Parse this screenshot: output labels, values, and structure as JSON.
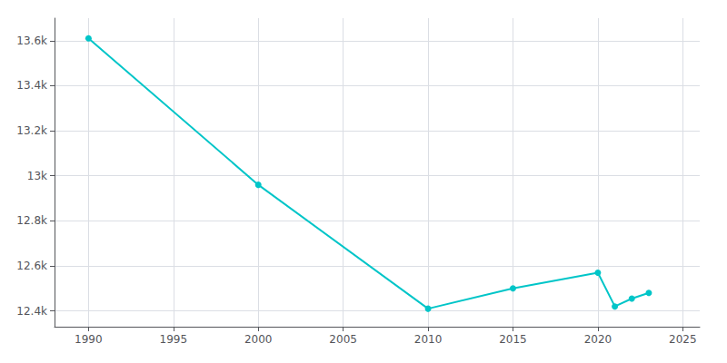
{
  "chart_data": {
    "type": "line",
    "x": [
      1990,
      2000,
      2010,
      2015,
      2020,
      2021,
      2022,
      2023
    ],
    "values": [
      13610,
      12960,
      12410,
      12500,
      12570,
      12420,
      12455,
      12480
    ],
    "color": "#00c5c8",
    "marker": "circle",
    "xlim": [
      1988,
      2026
    ],
    "xticks": [
      1990,
      1995,
      2000,
      2005,
      2010,
      2015,
      2020,
      2025
    ],
    "ylim": [
      12330,
      13700
    ],
    "yticks": [
      {
        "value": 12400,
        "label": "12.4k"
      },
      {
        "value": 12600,
        "label": "12.6k"
      },
      {
        "value": 12800,
        "label": "12.8k"
      },
      {
        "value": 13000,
        "label": "13k"
      },
      {
        "value": 13200,
        "label": "13.2k"
      },
      {
        "value": 13400,
        "label": "13.4k"
      },
      {
        "value": 13600,
        "label": "13.6k"
      }
    ],
    "grid": true
  }
}
